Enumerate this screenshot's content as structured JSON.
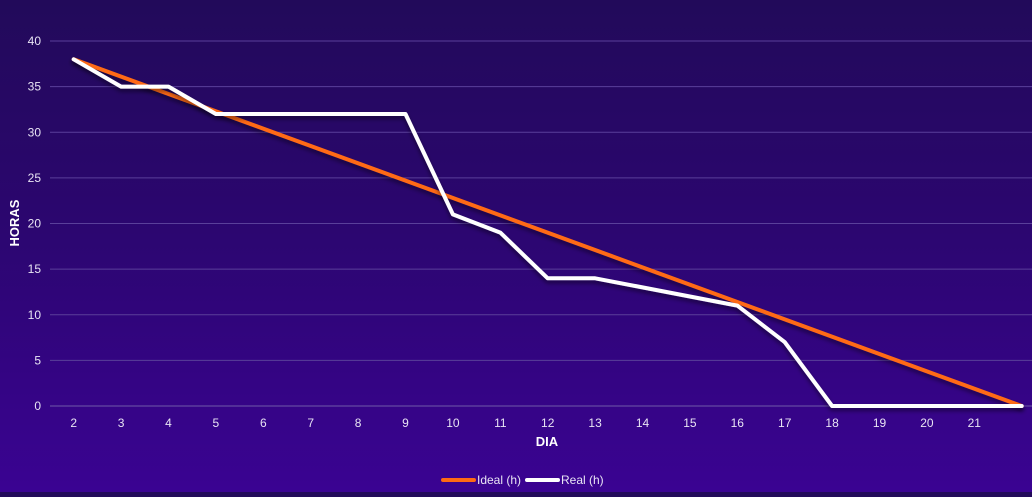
{
  "chart_data": {
    "type": "line",
    "title": "",
    "xlabel": "DIA",
    "ylabel": "HORAS",
    "x": [
      2,
      3,
      4,
      5,
      6,
      7,
      8,
      9,
      10,
      11,
      12,
      13,
      14,
      15,
      16,
      17,
      18,
      19,
      20,
      21
    ],
    "x_tick_labels": [
      "2",
      "3",
      "4",
      "5",
      "6",
      "7",
      "8",
      "9",
      "10",
      "11",
      "12",
      "13",
      "14",
      "15",
      "16",
      "17",
      "18",
      "19",
      "20",
      "21"
    ],
    "ylim": [
      0,
      40
    ],
    "y_ticks": [
      0,
      5,
      10,
      15,
      20,
      25,
      30,
      35,
      40
    ],
    "grid": true,
    "legend_position": "bottom-center",
    "series": [
      {
        "name": "Ideal (h)",
        "color": "#ff6a13",
        "points": [
          [
            2,
            38
          ],
          [
            22,
            0
          ]
        ]
      },
      {
        "name": "Real (h)",
        "color": "#ffffff",
        "points": [
          [
            2,
            38
          ],
          [
            3,
            35
          ],
          [
            4,
            35
          ],
          [
            5,
            32
          ],
          [
            6,
            32
          ],
          [
            7,
            32
          ],
          [
            8,
            32
          ],
          [
            9,
            32
          ],
          [
            10,
            21
          ],
          [
            11,
            19
          ],
          [
            12,
            14
          ],
          [
            13,
            14
          ],
          [
            14,
            13
          ],
          [
            15,
            12
          ],
          [
            16,
            11
          ],
          [
            17,
            7
          ],
          [
            18,
            0
          ],
          [
            19,
            0
          ],
          [
            20,
            0
          ],
          [
            21,
            0
          ],
          [
            22,
            0
          ]
        ]
      }
    ]
  }
}
